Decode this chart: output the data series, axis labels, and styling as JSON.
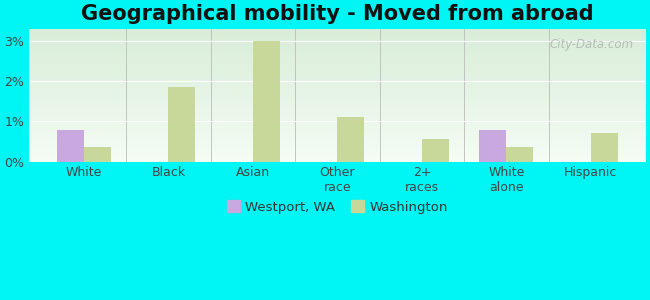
{
  "title": "Geographical mobility - Moved from abroad",
  "categories": [
    "White",
    "Black",
    "Asian",
    "Other\nrace",
    "2+\nraces",
    "White\nalone",
    "Hispanic"
  ],
  "westport_values": [
    0.78,
    0.0,
    0.0,
    0.0,
    0.0,
    0.78,
    0.0
  ],
  "washington_values": [
    0.35,
    1.85,
    3.0,
    1.1,
    0.55,
    0.35,
    0.72
  ],
  "westport_color": "#c9a8e0",
  "washington_color": "#c8d89a",
  "bar_width": 0.32,
  "ylim": [
    0,
    3.3
  ],
  "yticks": [
    0,
    1,
    2,
    3
  ],
  "ytick_labels": [
    "0%",
    "1%",
    "2%",
    "3%"
  ],
  "background_color": "#00f5f5",
  "plot_bg_top": "#d8edd8",
  "plot_bg_bottom": "#eaf6ea",
  "title_fontsize": 15,
  "tick_fontsize": 9,
  "legend_labels": [
    "Westport, WA",
    "Washington"
  ],
  "watermark": "City-Data.com"
}
